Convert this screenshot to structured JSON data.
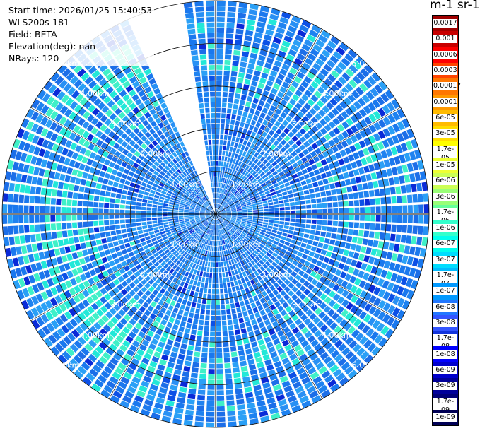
{
  "header": {
    "start_time_label": "Start time: 2026/01/25 15:40:53",
    "instrument_label": "WLS200s-181",
    "field_label": "Field: BETA",
    "elevation_label": "Elevation(deg): nan",
    "nrays_label": "NRays: 120"
  },
  "scan": {
    "nrays": 120,
    "max_range_km": 5.0,
    "missing_sector_deg": [
      -23,
      -9
    ]
  },
  "range_rings": [
    {
      "value_km": 1.0,
      "label": "1.00km"
    },
    {
      "value_km": 2.0,
      "label": "2.00km"
    },
    {
      "value_km": 3.0,
      "label": "3.00km"
    },
    {
      "value_km": 4.0,
      "label": "4.00km"
    },
    {
      "value_km": 5.0,
      "label": "5.00km"
    }
  ],
  "colorbar": {
    "units_label": "m-1 sr-1",
    "ticks": [
      "0.0017",
      "0.001",
      "0.0006",
      "0.0003",
      "0.00017",
      "0.0001",
      "6e-05",
      "3e-05",
      "1.7e-05",
      "1e-05",
      "6e-06",
      "3e-06",
      "1.7e-06",
      "1e-06",
      "6e-07",
      "3e-07",
      "1.7e-07",
      "1e-07",
      "6e-08",
      "3e-08",
      "1.7e-08",
      "1e-08",
      "6e-09",
      "3e-09",
      "1.7e-09",
      "1e-09"
    ],
    "colors": [
      "#a00000",
      "#c80000",
      "#ff0000",
      "#ff4400",
      "#ff7700",
      "#ff9900",
      "#ffbb00",
      "#ffdd00",
      "#ffff00",
      "#eeff33",
      "#ccff55",
      "#99ff77",
      "#66ff99",
      "#33ffcc",
      "#00ffee",
      "#00ddff",
      "#00bbff",
      "#0099ff",
      "#2277ff",
      "#3355ff",
      "#1133dd",
      "#0000ff",
      "#0000cc",
      "#000099",
      "#000077",
      "#000055"
    ]
  },
  "colors": {
    "accent_blue": "#1e82f0",
    "cyan": "#22e8d8",
    "deep_blue": "#0a2ad8",
    "grid": "#000000"
  }
}
